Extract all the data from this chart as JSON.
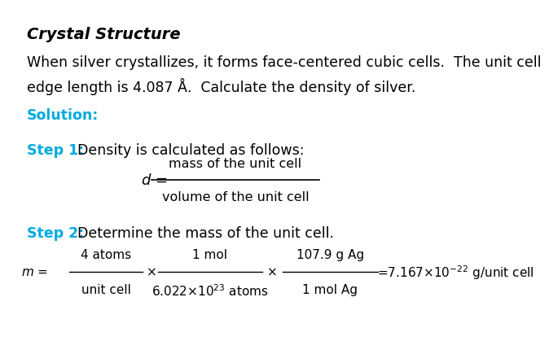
{
  "background_color": "#ffffff",
  "title": "Crystal Structure",
  "title_fontsize": 14,
  "title_color": "#000000",
  "body_text": "When silver crystallizes, it forms face-centered cubic cells.  The unit cell\nedge length is 4.087 Å.  Calculate the density of silver.",
  "body_fontsize": 12.5,
  "solution_label": "Solution:",
  "solution_color": "#00AADD",
  "step_color": "#00AADD",
  "step_fontsize": 12.5,
  "step1_label": "Step 1:",
  "step1_text": "Density is calculated as follows:",
  "formula_d_var": "d",
  "formula_d_numerator": "mass of the unit cell",
  "formula_d_denominator": "volume of the unit cell",
  "step2_label": "Step 2:",
  "step2_text": "Determine the mass of the unit cell.",
  "mass_m": "m",
  "frac1_num": "4 atoms",
  "frac1_den": "unit cell",
  "frac2_num": "1 mol",
  "frac2_den_base": "6.022×10",
  "frac2_den_exp": "23",
  "frac2_den_rest": " atoms",
  "frac3_num": "107.9 g Ag",
  "frac3_den": "1 mol Ag",
  "result": "=7.167×10",
  "result_exp": "−22",
  "result_unit": " g/unit cell"
}
